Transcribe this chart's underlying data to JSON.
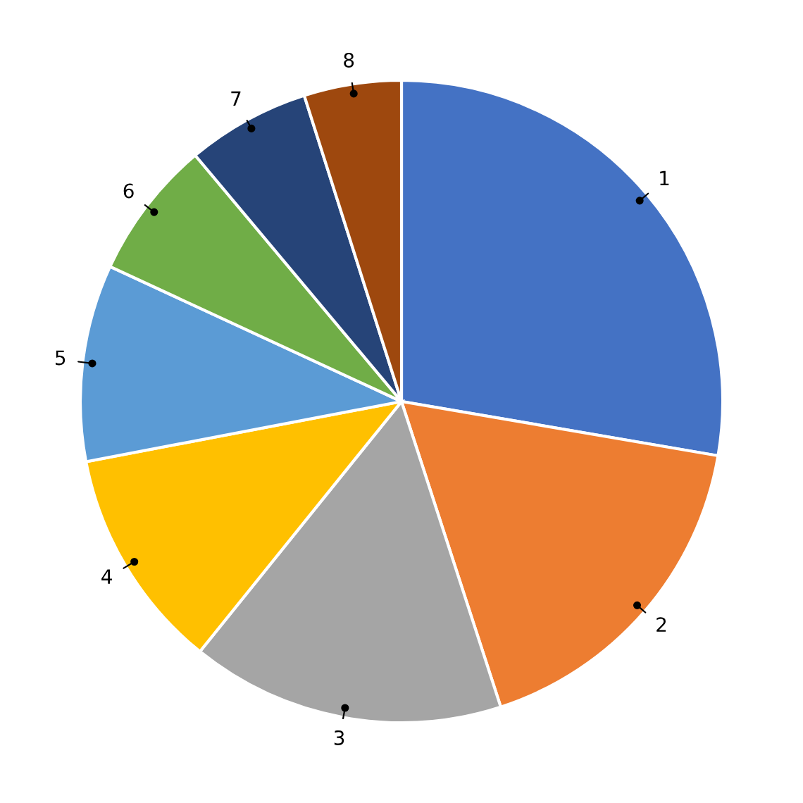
{
  "chart_data": {
    "type": "pie",
    "categories": [
      "1",
      "2",
      "3",
      "4",
      "5",
      "6",
      "7",
      "8"
    ],
    "values": [
      27.7,
      17.3,
      15.8,
      11.2,
      9.9,
      7.0,
      6.2,
      4.9
    ],
    "colors": [
      "#4472c4",
      "#ed7d31",
      "#a5a5a5",
      "#ffc000",
      "#5b9bd5",
      "#70ad47",
      "#264478",
      "#9e480e"
    ],
    "legend": false
  }
}
